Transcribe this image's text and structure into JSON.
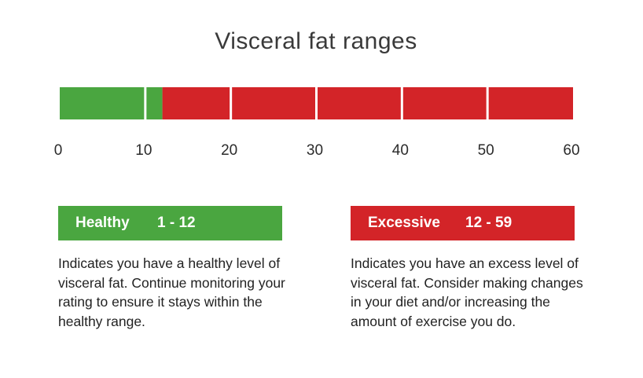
{
  "title": "Visceral fat ranges",
  "colors": {
    "healthy": "#4aa640",
    "excessive": "#d32428",
    "divider": "#ffffff"
  },
  "scale": {
    "min": 0,
    "max": 60,
    "ticks": [
      "0",
      "10",
      "20",
      "30",
      "40",
      "50",
      "60"
    ],
    "tick_values": [
      0,
      10,
      20,
      30,
      40,
      50,
      60
    ],
    "segments": [
      {
        "name": "Healthy",
        "from": 0,
        "to": 12,
        "color": "#4aa640"
      },
      {
        "name": "Excessive",
        "from": 12,
        "to": 60,
        "color": "#d32428"
      }
    ],
    "dividers": [
      10,
      20,
      30,
      40,
      50
    ]
  },
  "legend": {
    "healthy": {
      "name": "Healthy",
      "range": "1 - 12",
      "description": "Indicates you have a healthy level of visceral fat. Continue monitoring your rating to ensure it stays within the healthy range."
    },
    "excessive": {
      "name": "Excessive",
      "range": "12 - 59",
      "description": "Indicates you have an excess level of visceral fat. Consider making changes in your diet and/or increasing the amount of exercise you do."
    }
  }
}
